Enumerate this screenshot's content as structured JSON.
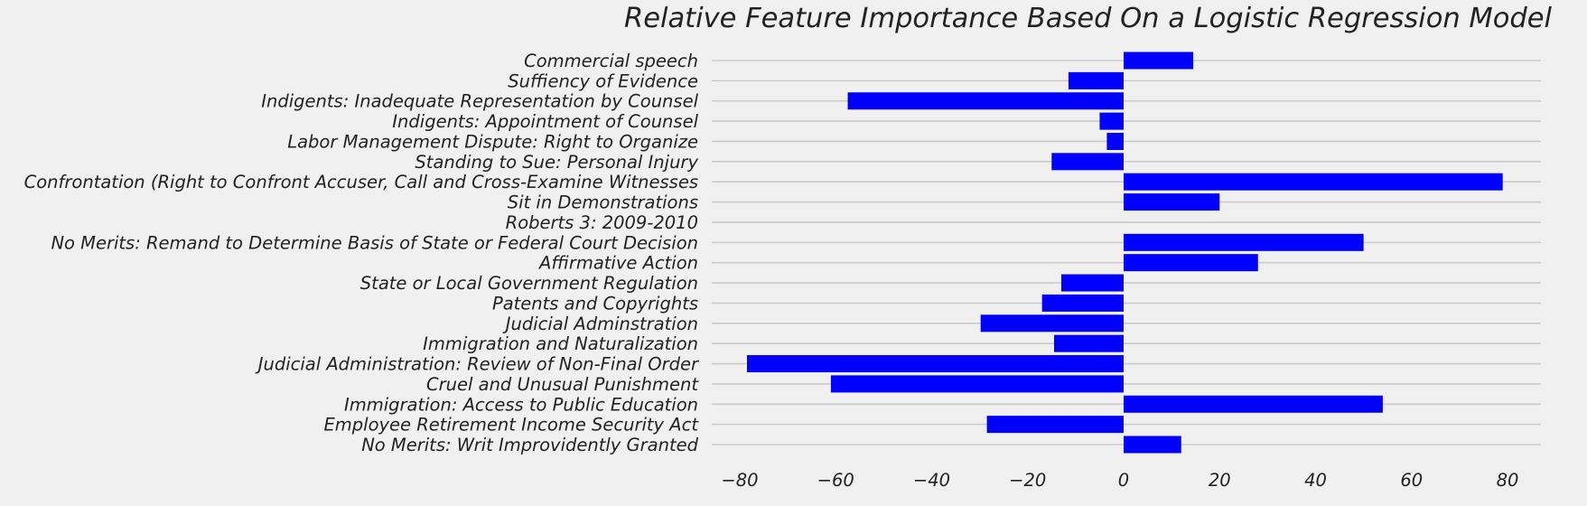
{
  "chart_data": {
    "type": "bar",
    "orientation": "horizontal",
    "title": "Relative Feature Importance Based On a Logistic Regression Model",
    "xlabel": "",
    "ylabel": "",
    "xlim": [
      -86,
      87
    ],
    "xticks": [
      -80,
      -60,
      -40,
      -20,
      0,
      20,
      40,
      60,
      80
    ],
    "xtick_labels": [
      "−80",
      "−60",
      "−40",
      "−20",
      "0",
      "20",
      "40",
      "60",
      "80"
    ],
    "grid": "horizontal",
    "categories": [
      "Commercial speech",
      "Suffiency of Evidence",
      "Indigents: Inadequate Representation by Counsel",
      "Indigents: Appointment of Counsel",
      "Labor Management Dispute: Right to Organize",
      "Standing to Sue: Personal Injury",
      "Confrontation (Right to Confront Accuser, Call and Cross-Examine Witnesses",
      "Sit in Demonstrations",
      "Roberts 3: 2009-2010",
      "No Merits: Remand to Determine Basis of State or Federal Court Decision",
      "Affirmative Action",
      "State or Local Government Regulation",
      "Patents and Copyrights",
      "Judicial Adminstration",
      "Immigration and Naturalization",
      "Judicial Administration: Review of Non-Final Order",
      "Cruel and Unusual Punishment",
      "Immigration: Access to Public Education",
      "Employee Retirement Income Security Act",
      "No Merits: Writ Improvidently Granted"
    ],
    "values": [
      14.5,
      -11.5,
      -57.5,
      -5,
      -3.5,
      -15,
      79,
      20,
      0,
      50,
      28,
      -13,
      -17,
      -29.8,
      -14.5,
      -78.5,
      -61,
      54,
      -28.5,
      12
    ],
    "bar_colors": [
      "#0000ff",
      "#0000ff",
      "#0000ff",
      "#0000ff",
      "#0000ff",
      "#0000ff",
      "#0000ff",
      "#0000ff",
      "#ff0000",
      "#0000ff",
      "#0000ff",
      "#0000ff",
      "#0000ff",
      "#0000ff",
      "#0000ff",
      "#0000ff",
      "#0000ff",
      "#0000ff",
      "#0000ff",
      "#0000ff"
    ],
    "colors": {
      "background": "#f0f0f0",
      "grid": "#cbcbcb",
      "bar_default": "#0000ff",
      "bar_highlight": "#ff0000",
      "text": "#222222"
    }
  }
}
